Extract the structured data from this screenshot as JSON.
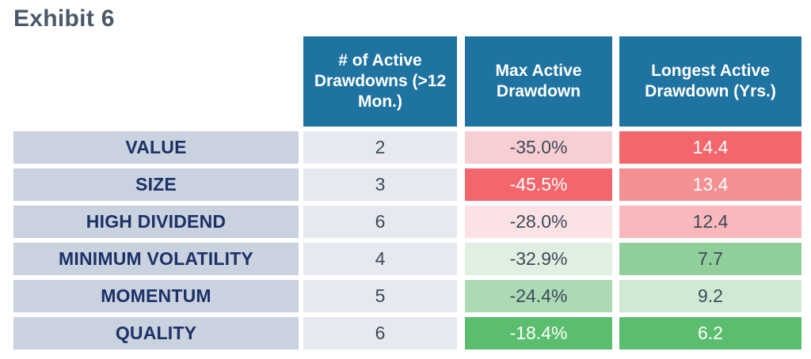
{
  "page_title": "Exhibit 6",
  "palette": {
    "title_text": "#4A5869",
    "header_bg": "#1F73A1",
    "header_text": "#FFFFFF",
    "row_label_bg": "#C9D2DE",
    "row_label_text": "#1B3168",
    "count_bg": "#E6E9EF",
    "dark_text": "#3E4A59",
    "white_text": "#FFFFFF",
    "red_strong": "#F2666C",
    "red_medium": "#F29093",
    "red_light": "#F9B8BB",
    "pink_light": "#F7CED2",
    "pink_faint": "#FBE2E4",
    "green_strong": "#5BBE6F",
    "green_medium": "#90CE9B",
    "green_light": "#ABDAB5",
    "green_pale": "#CFE9D4",
    "green_faint": "#DFF0E2"
  },
  "chart_data": {
    "type": "table",
    "title": "Exhibit 6",
    "columns": [
      "# of Active Drawdowns (>12 Mon.)",
      "Max Active Drawdown",
      "Longest Active Drawdown (Yrs.)"
    ],
    "rows": [
      {
        "label": "VALUE",
        "num_drawdowns": "2",
        "max_drawdown": "-35.0%",
        "longest_yrs": "14.4",
        "max_bg": "#F7CED2",
        "max_fg": "#3E4A59",
        "longest_bg": "#F2666C",
        "longest_fg": "#FFFFFF"
      },
      {
        "label": "SIZE",
        "num_drawdowns": "3",
        "max_drawdown": "-45.5%",
        "longest_yrs": "13.4",
        "max_bg": "#F2666C",
        "max_fg": "#FFFFFF",
        "longest_bg": "#F29093",
        "longest_fg": "#FFFFFF"
      },
      {
        "label": "HIGH DIVIDEND",
        "num_drawdowns": "6",
        "max_drawdown": "-28.0%",
        "longest_yrs": "12.4",
        "max_bg": "#FBE2E4",
        "max_fg": "#3E4A59",
        "longest_bg": "#F9B8BB",
        "longest_fg": "#3E4A59"
      },
      {
        "label": "MINIMUM VOLATILITY",
        "num_drawdowns": "4",
        "max_drawdown": "-32.9%",
        "longest_yrs": "7.7",
        "max_bg": "#DFF0E2",
        "max_fg": "#3E4A59",
        "longest_bg": "#90CE9B",
        "longest_fg": "#3E4A59"
      },
      {
        "label": "MOMENTUM",
        "num_drawdowns": "5",
        "max_drawdown": "-24.4%",
        "longest_yrs": "9.2",
        "max_bg": "#ABDAB5",
        "max_fg": "#3E4A59",
        "longest_bg": "#CFE9D4",
        "longest_fg": "#3E4A59"
      },
      {
        "label": "QUALITY",
        "num_drawdowns": "6",
        "max_drawdown": "-18.4%",
        "longest_yrs": "6.2",
        "max_bg": "#5BBE6F",
        "max_fg": "#FFFFFF",
        "longest_bg": "#5BBE6F",
        "longest_fg": "#FFFFFF"
      }
    ]
  }
}
